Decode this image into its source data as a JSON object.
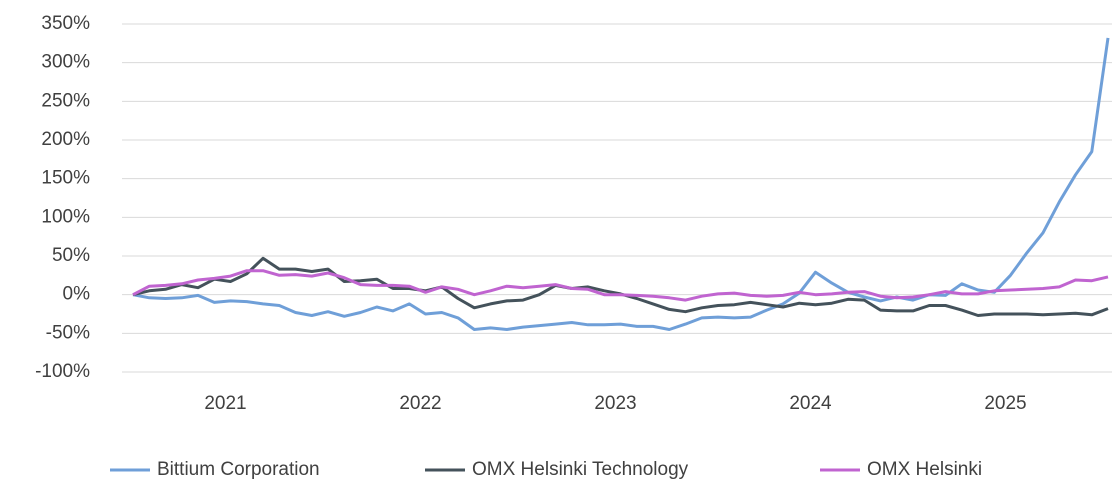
{
  "chart_data": {
    "type": "line",
    "categories": [
      null,
      null,
      null,
      null,
      null,
      null,
      "2021",
      null,
      null,
      null,
      null,
      null,
      null,
      null,
      null,
      null,
      null,
      null,
      "2022",
      null,
      null,
      null,
      null,
      null,
      null,
      null,
      null,
      null,
      null,
      null,
      "2023",
      null,
      null,
      null,
      null,
      null,
      null,
      null,
      null,
      null,
      null,
      null,
      "2024",
      null,
      null,
      null,
      null,
      null,
      null,
      null,
      null,
      null,
      null,
      null,
      "2025",
      null,
      null,
      null,
      null,
      null,
      null
    ],
    "series": [
      {
        "name": "Bittium Corporation",
        "color": "#6f9fd8",
        "values": [
          0,
          -4,
          -5,
          -4,
          -1,
          -10,
          -8,
          -9,
          -12,
          -14,
          -23,
          -27,
          -22,
          -28,
          -23,
          -16,
          -21,
          -12,
          -25,
          -23,
          -30,
          -45,
          -43,
          -45,
          -42,
          -40,
          -38,
          -36,
          -39,
          -39,
          -38,
          -41,
          -41,
          -45,
          -38,
          -30,
          -29,
          -30,
          -29,
          -20,
          -12,
          2,
          29,
          15,
          3,
          -3,
          -8,
          -3,
          -7,
          0,
          -1,
          14,
          6,
          3,
          25,
          54,
          80,
          120,
          155,
          185,
          332
        ]
      },
      {
        "name": "OMX Helsinki Technology",
        "color": "#44525b",
        "values": [
          0,
          5,
          7,
          13,
          9,
          20,
          17,
          27,
          47,
          33,
          33,
          30,
          33,
          17,
          18,
          20,
          8,
          8,
          5,
          10,
          -5,
          -17,
          -12,
          -8,
          -7,
          0,
          12,
          8,
          10,
          5,
          1,
          -5,
          -12,
          -19,
          -22,
          -17,
          -14,
          -13,
          -10,
          -13,
          -16,
          -11,
          -13,
          -11,
          -6,
          -7,
          -20,
          -21,
          -21,
          -14,
          -14,
          -20,
          -27,
          -25,
          -25,
          -25,
          -26,
          -25,
          -24,
          -26,
          -18
        ]
      },
      {
        "name": "OMX Helsinki",
        "color": "#c064d0",
        "values": [
          0,
          11,
          12,
          14,
          19,
          21,
          24,
          31,
          31,
          25,
          26,
          24,
          28,
          22,
          13,
          12,
          12,
          11,
          3,
          10,
          7,
          0,
          5,
          11,
          9,
          11,
          13,
          8,
          7,
          0,
          0,
          -1,
          -2,
          -4,
          -7,
          -2,
          1,
          2,
          -1,
          -2,
          -1,
          3,
          0,
          1,
          3,
          4,
          -2,
          -4,
          -3,
          0,
          4,
          1,
          1,
          5,
          6,
          7,
          8,
          10,
          19,
          18,
          23
        ]
      }
    ],
    "ylim": [
      -100,
      350
    ],
    "yticks": [
      {
        "value": -100,
        "label": "-100%"
      },
      {
        "value": -50,
        "label": "-50%"
      },
      {
        "value": 0,
        "label": "0%"
      },
      {
        "value": 50,
        "label": "50%"
      },
      {
        "value": 100,
        "label": "100%"
      },
      {
        "value": 150,
        "label": "150%"
      },
      {
        "value": 200,
        "label": "200%"
      },
      {
        "value": 250,
        "label": "250%"
      },
      {
        "value": 300,
        "label": "300%"
      },
      {
        "value": 350,
        "label": "350%"
      }
    ],
    "grid": true
  }
}
